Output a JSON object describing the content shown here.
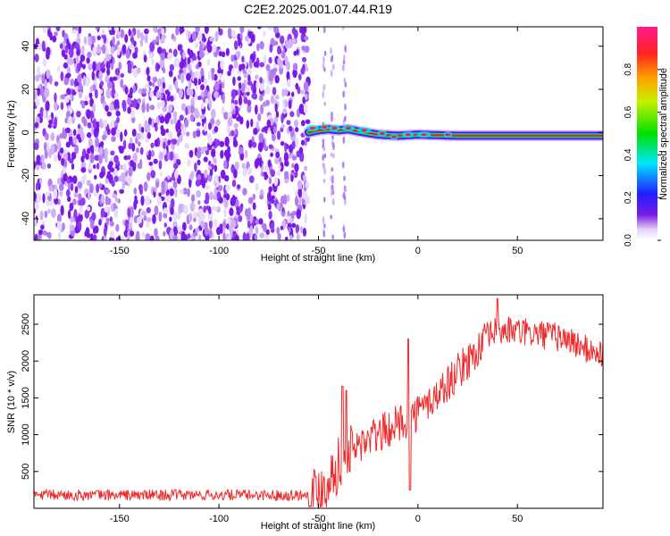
{
  "figure": {
    "title": "C2E2.2025.001.07.44.R19"
  },
  "colors": {
    "snr_line": "#ee2b2b",
    "scatter_purple": "#7a1ae8",
    "axes": "#000000"
  },
  "chart_data": [
    {
      "type": "heatmap",
      "panel": "top",
      "xlabel": "Height of straight line (km)",
      "ylabel": "Frequency (Hz)",
      "xlim": [
        -193,
        93
      ],
      "ylim": [
        -50,
        49
      ],
      "xticks": [
        -150,
        -100,
        -50,
        0,
        50
      ],
      "yticks": [
        -40,
        -20,
        0,
        20,
        40
      ],
      "colorbar": {
        "label": "Normalized spectral amplitude",
        "range": [
          0,
          1
        ],
        "ticks": [
          "0.0",
          "0.2",
          "0.4",
          "0.6",
          "0.8"
        ],
        "colormap": "rainbow (white-violet-blue-cyan-green-yellow-red-magenta)"
      },
      "features": {
        "noise_region_km": [
          -193,
          -55
        ],
        "scattered_columns_km": [
          -47,
          -37
        ],
        "signal_track": {
          "start_km": -55,
          "end_km": 93,
          "frequency_hz": [
            [
              -55,
              0
            ],
            [
              -50,
              1
            ],
            [
              -45,
              1.5
            ],
            [
              -40,
              1
            ],
            [
              -35,
              1.5
            ],
            [
              -30,
              0.5
            ],
            [
              -20,
              -1
            ],
            [
              -10,
              -1.5
            ],
            [
              0,
              -1
            ],
            [
              20,
              -1.5
            ],
            [
              50,
              -1.5
            ],
            [
              93,
              -1.5
            ]
          ]
        }
      }
    },
    {
      "type": "line",
      "panel": "bottom",
      "xlabel": "Height of straight line (km)",
      "ylabel": "SNR (10 * v/v)",
      "xlim": [
        -193,
        93
      ],
      "ylim": [
        0,
        2900
      ],
      "xticks": [
        -150,
        -100,
        -50,
        0,
        50
      ],
      "yticks": [
        500,
        1000,
        1500,
        2000,
        2500
      ],
      "series": [
        {
          "color": "#ee2b2b",
          "baseline": [
            [
              -193,
              180
            ],
            [
              -60,
              180
            ],
            [
              -55,
              190
            ],
            [
              -50,
              230
            ],
            [
              -45,
              400
            ],
            [
              -40,
              600
            ],
            [
              -35,
              750
            ],
            [
              -30,
              850
            ],
            [
              -20,
              1000
            ],
            [
              -10,
              1150
            ],
            [
              0,
              1300
            ],
            [
              10,
              1550
            ],
            [
              20,
              1850
            ],
            [
              30,
              2150
            ],
            [
              38,
              2400
            ],
            [
              45,
              2420
            ],
            [
              55,
              2380
            ],
            [
              65,
              2350
            ],
            [
              75,
              2300
            ],
            [
              85,
              2150
            ],
            [
              93,
              2100
            ]
          ],
          "spikes": [
            [
              -38,
              1660
            ],
            [
              -36,
              1600
            ],
            [
              -5,
              2300
            ],
            [
              -4,
              250
            ],
            [
              40,
              2850
            ]
          ]
        }
      ]
    }
  ]
}
